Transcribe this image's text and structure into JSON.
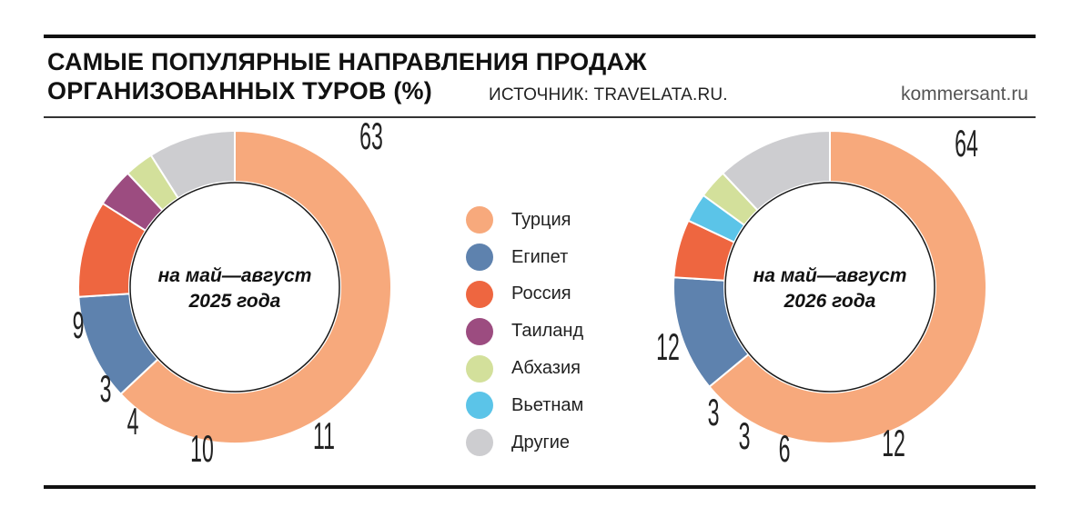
{
  "header": {
    "title_line1": "САМЫЕ ПОПУЛЯРНЫЕ НАПРАВЛЕНИЯ ПРОДАЖ",
    "title_line2": "ОРГАНИЗОВАННЫХ ТУРОВ (%)",
    "source": "ИСТОЧНИК: TRAVELATA.RU.",
    "brand": "kommersant.ru"
  },
  "chart_data": [
    {
      "type": "pie",
      "title": "",
      "center_label": [
        "на май—август",
        "2025 года"
      ],
      "slices": [
        {
          "name": "Турция",
          "value": 63,
          "color": "#F7A97C"
        },
        {
          "name": "Египет",
          "value": 11,
          "color": "#5E82AE"
        },
        {
          "name": "Россия",
          "value": 10,
          "color": "#EE6640"
        },
        {
          "name": "Таиланд",
          "value": 4,
          "color": "#9C4C80"
        },
        {
          "name": "Абхазия",
          "value": 3,
          "color": "#D3E09B"
        },
        {
          "name": "Другие",
          "value": 9,
          "color": "#CDCDD0"
        }
      ]
    },
    {
      "type": "pie",
      "title": "",
      "center_label": [
        "на май—август",
        "2026 года"
      ],
      "slices": [
        {
          "name": "Турция",
          "value": 64,
          "color": "#F7A97C"
        },
        {
          "name": "Египет",
          "value": 12,
          "color": "#5E82AE"
        },
        {
          "name": "Россия",
          "value": 6,
          "color": "#EE6640"
        },
        {
          "name": "Вьетнам",
          "value": 3,
          "color": "#5BC4E8"
        },
        {
          "name": "Абхазия",
          "value": 3,
          "color": "#D3E09B"
        },
        {
          "name": "Другие",
          "value": 12,
          "color": "#CDCDD0"
        }
      ]
    }
  ],
  "legend": [
    {
      "label": "Турция",
      "color": "#F7A97C"
    },
    {
      "label": "Египет",
      "color": "#5E82AE"
    },
    {
      "label": "Россия",
      "color": "#EE6640"
    },
    {
      "label": "Таиланд",
      "color": "#9C4C80"
    },
    {
      "label": "Абхазия",
      "color": "#D3E09B"
    },
    {
      "label": "Вьетнам",
      "color": "#5BC4E8"
    },
    {
      "label": "Другие",
      "color": "#CDCDD0"
    }
  ]
}
